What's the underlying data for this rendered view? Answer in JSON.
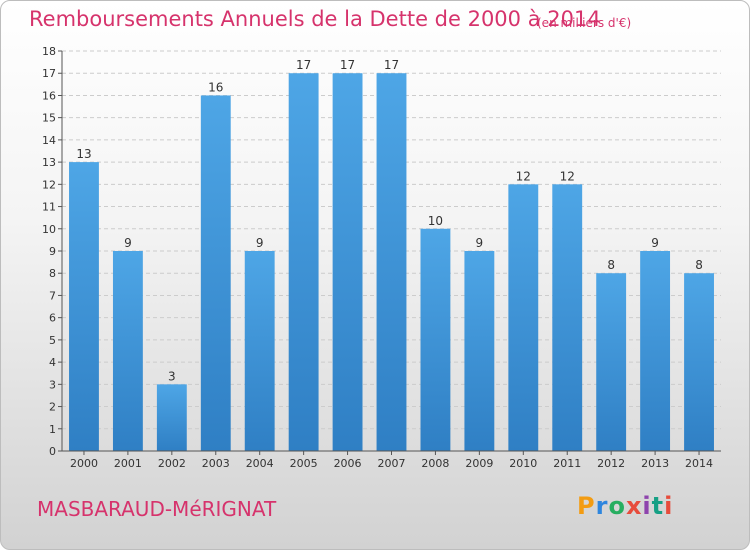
{
  "header": {
    "title": "Remboursements Annuels de la Dette de 2000 à 2014",
    "subtitle": "(en milliers d'€)"
  },
  "footer": {
    "commune": "MASBARAUD-MéRIGNAT",
    "logo": [
      "P",
      "r",
      "o",
      "x",
      "i",
      "t",
      "i"
    ]
  },
  "colors": {
    "bar": "#4ea6e6",
    "bar_dark": "#2f7fc4",
    "title": "#d6336c",
    "grid": "#cccccc"
  },
  "chart_data": {
    "type": "bar",
    "title": "Remboursements Annuels de la Dette de 2000 à 2014",
    "xlabel": "",
    "ylabel": "",
    "categories": [
      "2000",
      "2001",
      "2002",
      "2003",
      "2004",
      "2005",
      "2006",
      "2007",
      "2008",
      "2009",
      "2010",
      "2011",
      "2012",
      "2013",
      "2014"
    ],
    "values": [
      13,
      9,
      3,
      16,
      9,
      17,
      17,
      17,
      10,
      9,
      12,
      12,
      8,
      9,
      8
    ],
    "ylim": [
      0,
      18
    ],
    "yticks": [
      0,
      1,
      2,
      3,
      4,
      5,
      6,
      7,
      8,
      9,
      10,
      11,
      12,
      13,
      14,
      15,
      16,
      17,
      18
    ],
    "grid": true,
    "legend": "none"
  }
}
